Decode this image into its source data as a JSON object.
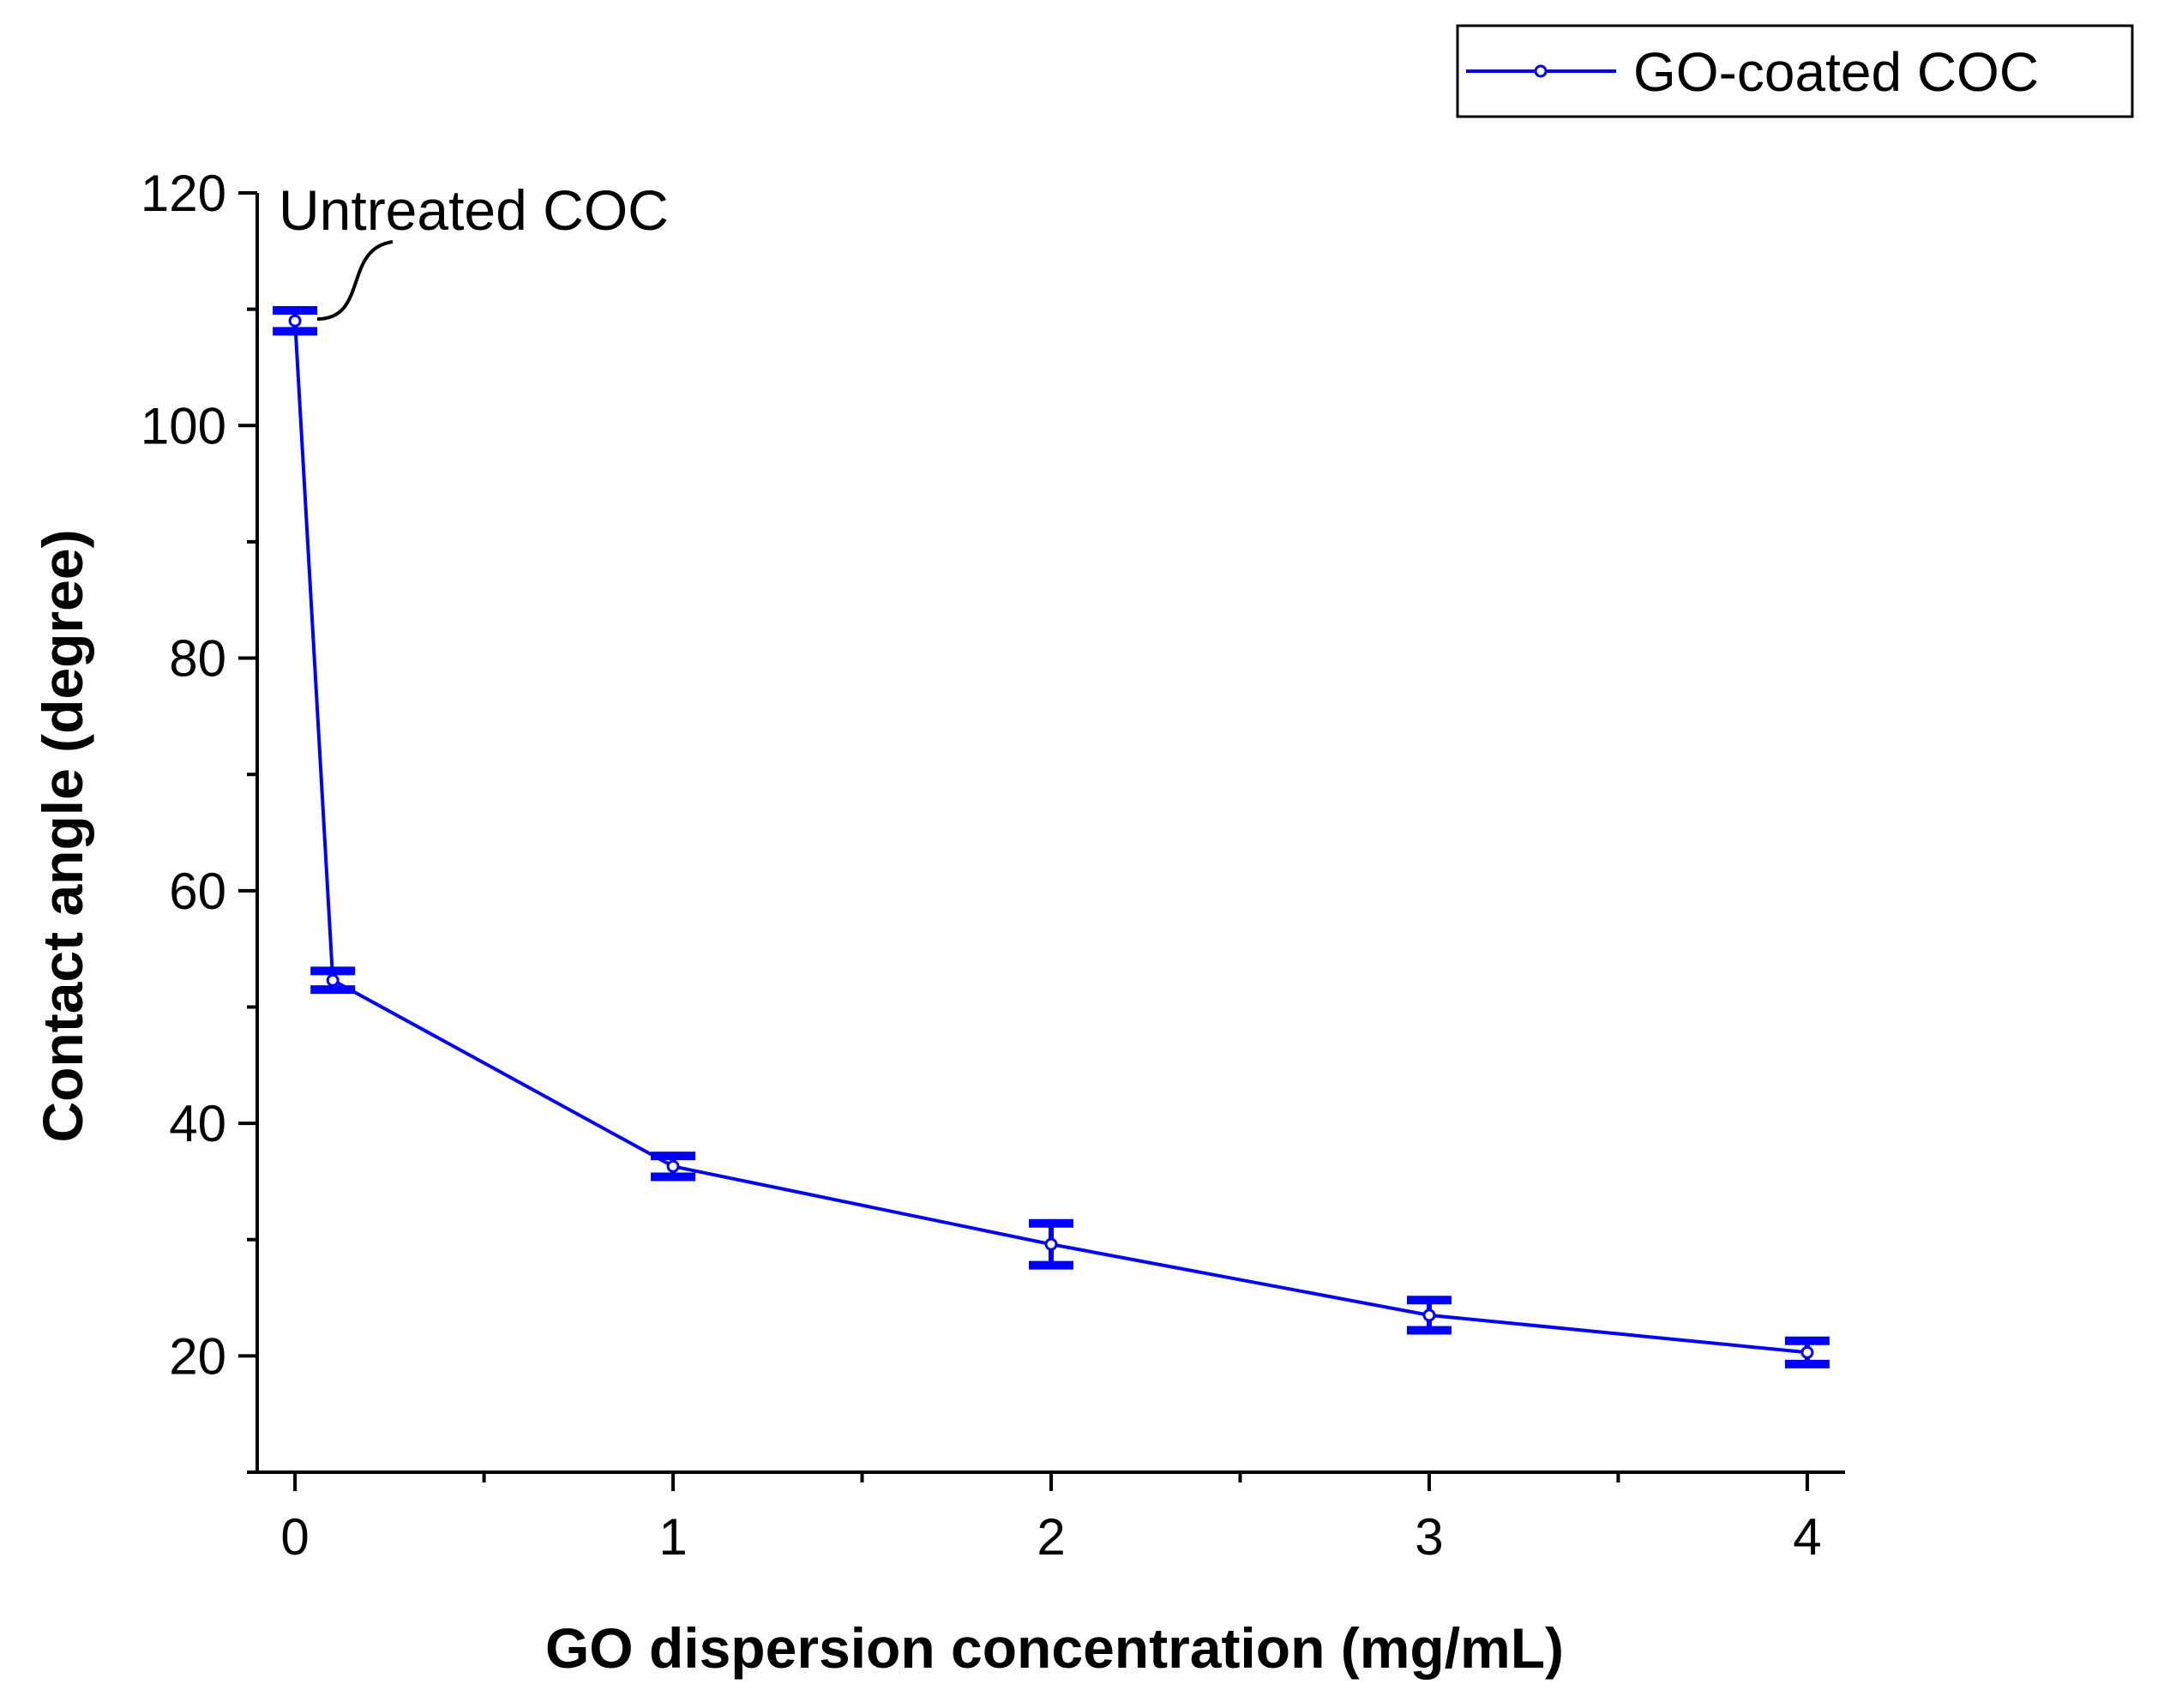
{
  "chart_data": {
    "type": "line",
    "title": "",
    "xlabel": "GO dispersion concentration (mg/mL)",
    "ylabel": "Contact angle (degree)",
    "xlim": [
      -0.1,
      4.1
    ],
    "ylim": [
      10,
      120
    ],
    "xticks": [
      0,
      1,
      2,
      3,
      4
    ],
    "xtick_labels": [
      "0",
      "1",
      "2",
      "3",
      "4"
    ],
    "yticks": [
      20,
      40,
      60,
      80,
      100,
      120
    ],
    "ytick_labels": [
      "20",
      "40",
      "60",
      "80",
      "100",
      "120"
    ],
    "grid": false,
    "legend_position": "top-right",
    "series": [
      {
        "name": "GO-coated COC",
        "color": "#0000ff",
        "x": [
          0,
          0.1,
          1,
          2,
          3,
          4
        ],
        "y": [
          109,
          52.3,
          36.3,
          29.6,
          23.5,
          20.3
        ],
        "error": [
          0.9,
          0.8,
          0.9,
          1.8,
          1.3,
          1.0
        ]
      }
    ],
    "annotations": [
      {
        "text": "Untreated COC",
        "points_to": {
          "x": 0,
          "y": 109
        }
      }
    ]
  }
}
